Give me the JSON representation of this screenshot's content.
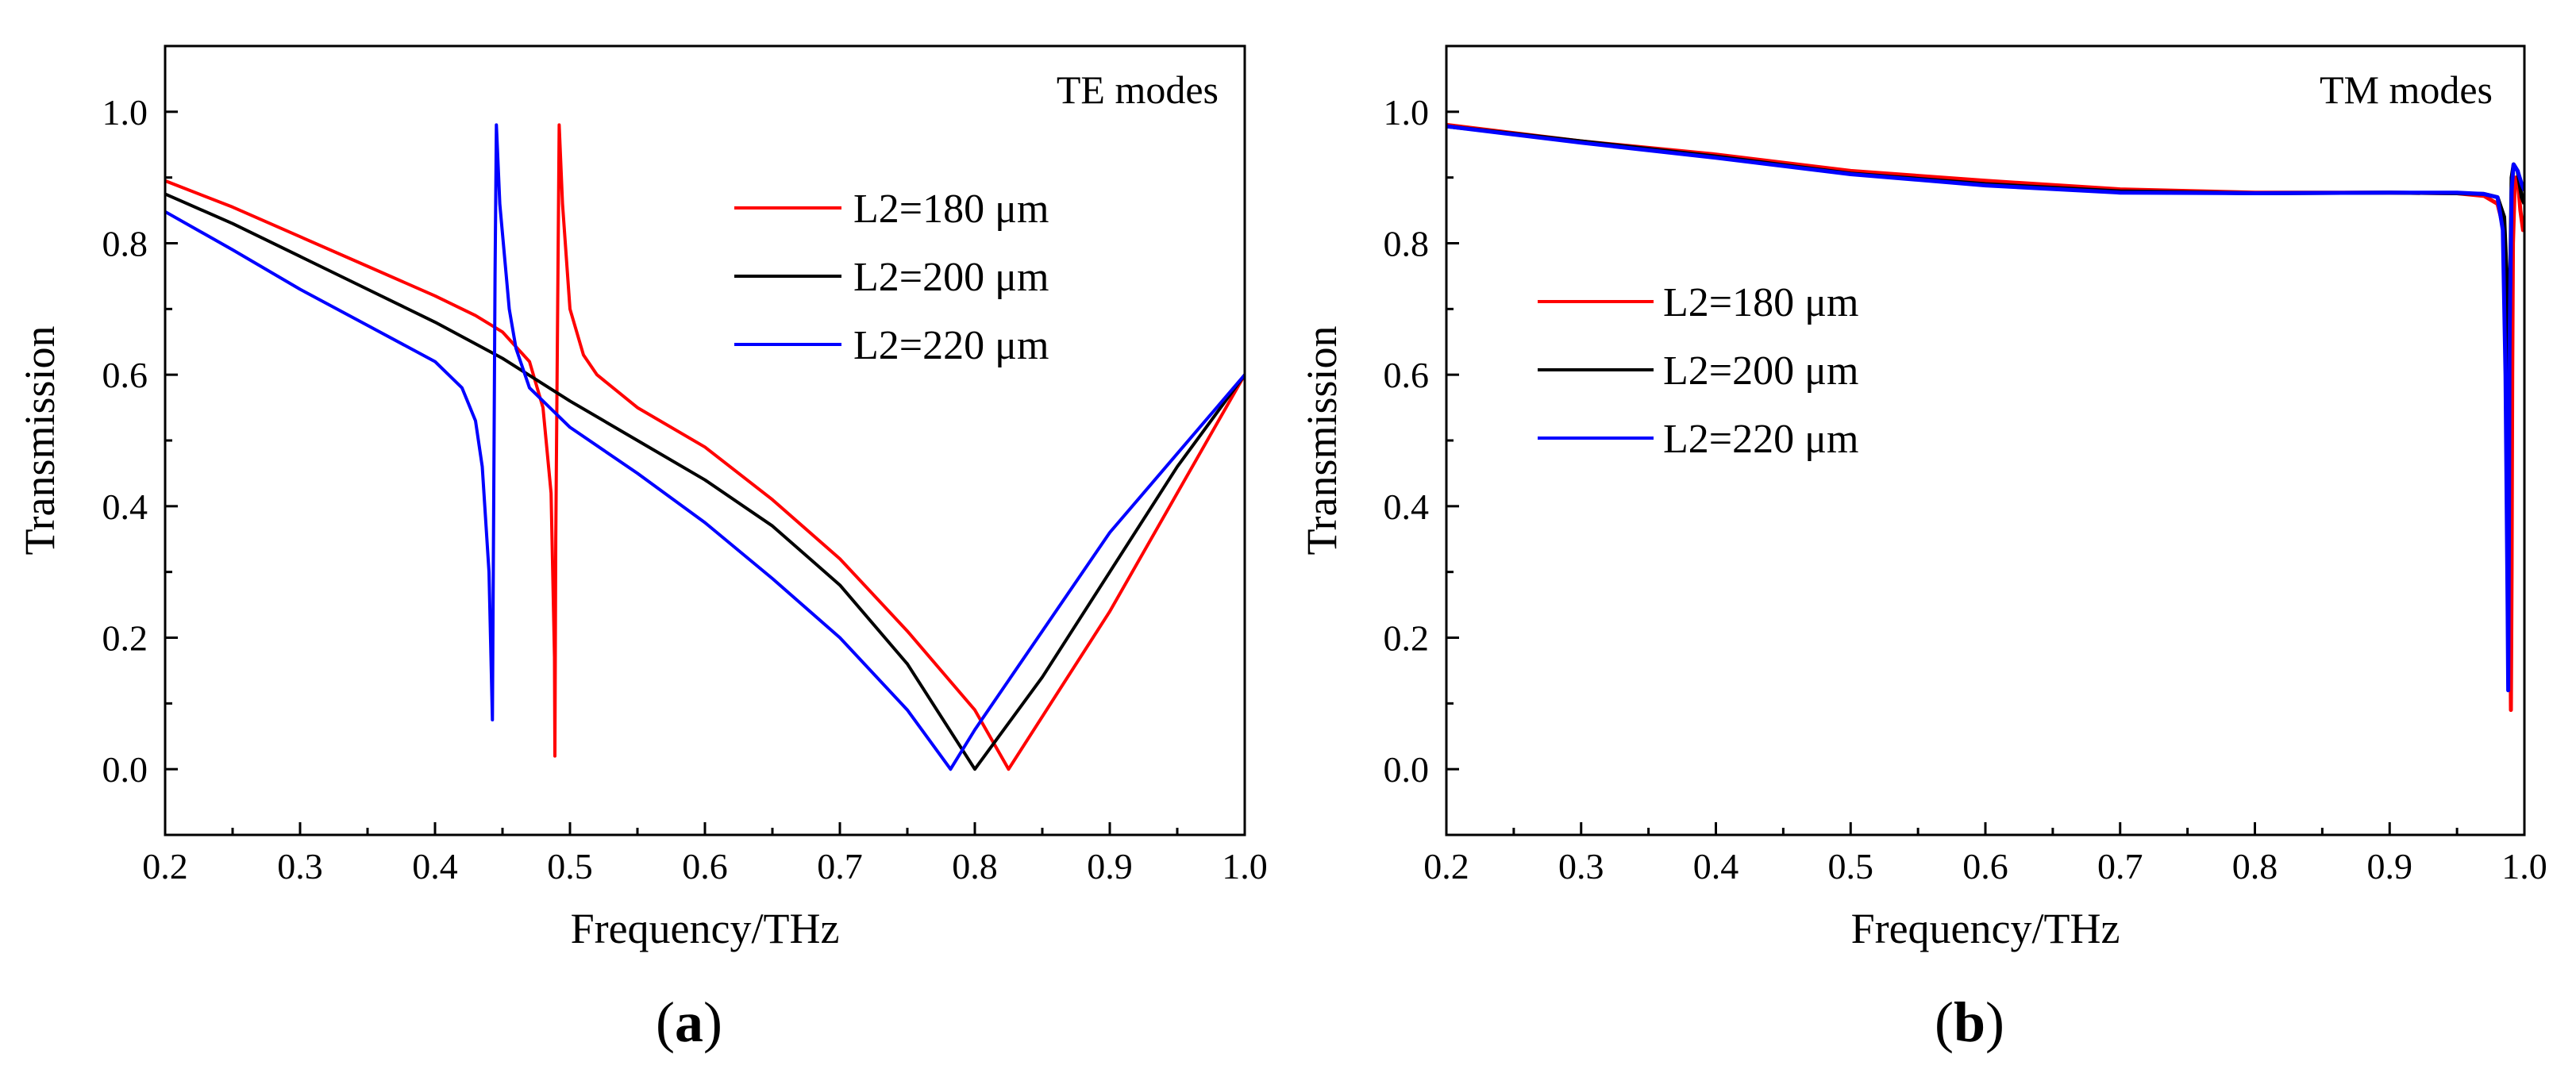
{
  "chart_data": [
    {
      "type": "line",
      "panel": "a",
      "caption_letter": "a",
      "annotation": "TE modes",
      "xlabel": "Frequency/THz",
      "ylabel": "Transmission",
      "xlim": [
        0.2,
        1.0
      ],
      "ylim": [
        -0.1,
        1.1
      ],
      "xticks": [
        "0.2",
        "0.3",
        "0.4",
        "0.5",
        "0.6",
        "0.7",
        "0.8",
        "0.9",
        "1.0"
      ],
      "yticks": [
        "0.0",
        "0.2",
        "0.4",
        "0.6",
        "0.8",
        "1.0"
      ],
      "grid": false,
      "legend_position": "top-right",
      "series": [
        {
          "name": "L2=180 μm",
          "color": "#ff0000",
          "points": [
            [
              0.2,
              0.895
            ],
            [
              0.25,
              0.855
            ],
            [
              0.3,
              0.81
            ],
            [
              0.35,
              0.765
            ],
            [
              0.4,
              0.72
            ],
            [
              0.43,
              0.69
            ],
            [
              0.45,
              0.665
            ],
            [
              0.47,
              0.62
            ],
            [
              0.48,
              0.55
            ],
            [
              0.486,
              0.42
            ],
            [
              0.4885,
              0.17
            ],
            [
              0.4888,
              0.02
            ],
            [
              0.4895,
              0.35
            ],
            [
              0.4905,
              0.6
            ],
            [
              0.492,
              0.98
            ],
            [
              0.4945,
              0.86
            ],
            [
              0.5,
              0.7
            ],
            [
              0.51,
              0.63
            ],
            [
              0.52,
              0.6
            ],
            [
              0.55,
              0.55
            ],
            [
              0.6,
              0.49
            ],
            [
              0.65,
              0.41
            ],
            [
              0.7,
              0.32
            ],
            [
              0.75,
              0.21
            ],
            [
              0.8,
              0.09
            ],
            [
              0.825,
              0.0
            ],
            [
              0.85,
              0.08
            ],
            [
              0.9,
              0.24
            ],
            [
              0.95,
              0.42
            ],
            [
              1.0,
              0.6
            ]
          ]
        },
        {
          "name": "L2=200 μm",
          "color": "#000000",
          "points": [
            [
              0.2,
              0.875
            ],
            [
              0.25,
              0.83
            ],
            [
              0.3,
              0.78
            ],
            [
              0.35,
              0.73
            ],
            [
              0.4,
              0.68
            ],
            [
              0.45,
              0.625
            ],
            [
              0.5,
              0.56
            ],
            [
              0.55,
              0.5
            ],
            [
              0.6,
              0.44
            ],
            [
              0.65,
              0.37
            ],
            [
              0.7,
              0.28
            ],
            [
              0.75,
              0.16
            ],
            [
              0.8,
              0.0
            ],
            [
              0.85,
              0.14
            ],
            [
              0.9,
              0.3
            ],
            [
              0.95,
              0.46
            ],
            [
              1.0,
              0.6
            ]
          ]
        },
        {
          "name": "L2=220 μm",
          "color": "#0000ff",
          "points": [
            [
              0.2,
              0.848
            ],
            [
              0.25,
              0.79
            ],
            [
              0.3,
              0.73
            ],
            [
              0.35,
              0.675
            ],
            [
              0.4,
              0.62
            ],
            [
              0.42,
              0.58
            ],
            [
              0.43,
              0.53
            ],
            [
              0.435,
              0.46
            ],
            [
              0.44,
              0.3
            ],
            [
              0.4425,
              0.075
            ],
            [
              0.4435,
              0.4
            ],
            [
              0.4445,
              0.75
            ],
            [
              0.4455,
              0.98
            ],
            [
              0.448,
              0.86
            ],
            [
              0.455,
              0.7
            ],
            [
              0.46,
              0.64
            ],
            [
              0.47,
              0.58
            ],
            [
              0.5,
              0.52
            ],
            [
              0.55,
              0.45
            ],
            [
              0.6,
              0.375
            ],
            [
              0.65,
              0.29
            ],
            [
              0.7,
              0.2
            ],
            [
              0.75,
              0.09
            ],
            [
              0.782,
              0.0
            ],
            [
              0.8,
              0.06
            ],
            [
              0.85,
              0.21
            ],
            [
              0.9,
              0.36
            ],
            [
              0.95,
              0.48
            ],
            [
              1.0,
              0.6
            ]
          ]
        }
      ]
    },
    {
      "type": "line",
      "panel": "b",
      "caption_letter": "b",
      "annotation": "TM modes",
      "xlabel": "Frequency/THz",
      "ylabel": "Transmission",
      "xlim": [
        0.2,
        1.0
      ],
      "ylim": [
        -0.1,
        1.1
      ],
      "xticks": [
        "0.2",
        "0.3",
        "0.4",
        "0.5",
        "0.6",
        "0.7",
        "0.8",
        "0.9",
        "1.0"
      ],
      "yticks": [
        "0.0",
        "0.2",
        "0.4",
        "0.6",
        "0.8",
        "1.0"
      ],
      "grid": false,
      "legend_position": "center-left",
      "series": [
        {
          "name": "L2=180 μm",
          "color": "#ff0000",
          "points": [
            [
              0.2,
              0.98
            ],
            [
              0.3,
              0.955
            ],
            [
              0.4,
              0.935
            ],
            [
              0.5,
              0.91
            ],
            [
              0.6,
              0.895
            ],
            [
              0.7,
              0.882
            ],
            [
              0.8,
              0.877
            ],
            [
              0.9,
              0.877
            ],
            [
              0.95,
              0.876
            ],
            [
              0.97,
              0.872
            ],
            [
              0.98,
              0.86
            ],
            [
              0.985,
              0.82
            ],
            [
              0.987,
              0.7
            ],
            [
              0.9885,
              0.5
            ],
            [
              0.9895,
              0.25
            ],
            [
              0.99,
              0.09
            ],
            [
              0.9905,
              0.3
            ],
            [
              0.991,
              0.6
            ],
            [
              0.9915,
              0.8
            ],
            [
              0.993,
              0.9
            ],
            [
              0.995,
              0.9
            ],
            [
              0.997,
              0.85
            ],
            [
              0.999,
              0.82
            ],
            [
              1.0,
              0.82
            ]
          ]
        },
        {
          "name": "L2=200 μm",
          "color": "#000000",
          "points": [
            [
              0.2,
              0.978
            ],
            [
              0.3,
              0.955
            ],
            [
              0.4,
              0.932
            ],
            [
              0.5,
              0.906
            ],
            [
              0.6,
              0.89
            ],
            [
              0.7,
              0.879
            ],
            [
              0.8,
              0.876
            ],
            [
              0.9,
              0.877
            ],
            [
              0.95,
              0.876
            ],
            [
              0.97,
              0.875
            ],
            [
              0.98,
              0.87
            ],
            [
              0.985,
              0.84
            ],
            [
              0.9875,
              0.72
            ],
            [
              0.9885,
              0.58
            ],
            [
              0.9895,
              0.75
            ],
            [
              0.9905,
              0.9
            ],
            [
              0.992,
              0.92
            ],
            [
              0.995,
              0.91
            ],
            [
              0.998,
              0.87
            ],
            [
              1.0,
              0.86
            ]
          ]
        },
        {
          "name": "L2=220 μm",
          "color": "#0000ff",
          "points": [
            [
              0.2,
              0.978
            ],
            [
              0.3,
              0.953
            ],
            [
              0.4,
              0.93
            ],
            [
              0.5,
              0.905
            ],
            [
              0.6,
              0.888
            ],
            [
              0.7,
              0.877
            ],
            [
              0.8,
              0.876
            ],
            [
              0.9,
              0.877
            ],
            [
              0.95,
              0.877
            ],
            [
              0.97,
              0.875
            ],
            [
              0.98,
              0.87
            ],
            [
              0.984,
              0.82
            ],
            [
              0.986,
              0.6
            ],
            [
              0.9875,
              0.25
            ],
            [
              0.988,
              0.12
            ],
            [
              0.9885,
              0.35
            ],
            [
              0.989,
              0.65
            ],
            [
              0.9905,
              0.88
            ],
            [
              0.992,
              0.92
            ],
            [
              0.995,
              0.91
            ],
            [
              0.998,
              0.89
            ],
            [
              1.0,
              0.88
            ]
          ]
        }
      ]
    }
  ]
}
